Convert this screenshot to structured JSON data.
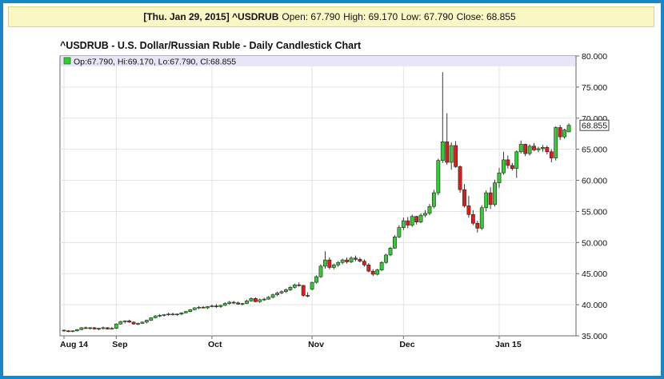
{
  "info_bar": {
    "date_symbol": "[Thu. Jan 29, 2015] ^USDRUB",
    "open": "Open: 67.790",
    "high": "High: 69.170",
    "low": "Low: 67.790",
    "close": "Close: 68.855"
  },
  "colors": {
    "up": "#33cc33",
    "down": "#dd1c1c",
    "legend_bg": "#e6e6f7",
    "frame": "#1a86c8"
  },
  "chart_data": {
    "type": "candlestick",
    "title": "^USDRUB - U.S. Dollar/Russian Ruble - Daily Candlestick Chart",
    "legend": "Op:67.790, Hi:69.170, Lo:67.790, Cl:68.855",
    "last_price_label": "68.855",
    "ylim": [
      35,
      80
    ],
    "y_ticks": [
      35,
      40,
      45,
      50,
      55,
      60,
      65,
      70,
      75,
      80
    ],
    "y_tick_labels": [
      "35.000",
      "40.000",
      "45.000",
      "50.000",
      "55.000",
      "60.000",
      "65.000",
      "70.000",
      "75.000",
      "80.000"
    ],
    "x_ticks": [
      {
        "label": "Aug 14",
        "index": 0
      },
      {
        "label": "Sep",
        "index": 12
      },
      {
        "label": "Oct",
        "index": 34
      },
      {
        "label": "Nov",
        "index": 57
      },
      {
        "label": "Dec",
        "index": 78
      },
      {
        "label": "Jan 15",
        "index": 100
      }
    ],
    "candles": [
      [
        35.9,
        36.0,
        35.7,
        35.8
      ],
      [
        35.8,
        35.9,
        35.6,
        35.7
      ],
      [
        35.7,
        35.9,
        35.6,
        35.8
      ],
      [
        35.8,
        36.1,
        35.7,
        36.0
      ],
      [
        36.0,
        36.4,
        35.9,
        36.3
      ],
      [
        36.3,
        36.5,
        36.1,
        36.2
      ],
      [
        36.2,
        36.4,
        36.0,
        36.3
      ],
      [
        36.3,
        36.4,
        36.0,
        36.1
      ],
      [
        36.1,
        36.3,
        35.9,
        36.2
      ],
      [
        36.2,
        36.5,
        36.0,
        36.3
      ],
      [
        36.3,
        36.4,
        36.0,
        36.1
      ],
      [
        36.1,
        36.4,
        36.0,
        36.2
      ],
      [
        36.2,
        37.0,
        36.1,
        36.9
      ],
      [
        36.9,
        37.4,
        36.8,
        37.3
      ],
      [
        37.3,
        37.5,
        37.0,
        37.4
      ],
      [
        37.4,
        37.6,
        37.1,
        37.2
      ],
      [
        37.2,
        37.3,
        36.8,
        36.9
      ],
      [
        36.9,
        37.1,
        36.7,
        37.0
      ],
      [
        37.0,
        37.3,
        36.9,
        37.2
      ],
      [
        37.2,
        37.6,
        37.0,
        37.5
      ],
      [
        37.5,
        38.0,
        37.4,
        37.9
      ],
      [
        37.9,
        38.3,
        37.8,
        38.2
      ],
      [
        38.2,
        38.5,
        38.0,
        38.3
      ],
      [
        38.3,
        38.5,
        38.1,
        38.4
      ],
      [
        38.4,
        38.7,
        38.2,
        38.5
      ],
      [
        38.5,
        38.7,
        38.3,
        38.4
      ],
      [
        38.4,
        38.6,
        38.2,
        38.5
      ],
      [
        38.5,
        38.8,
        38.3,
        38.7
      ],
      [
        38.7,
        39.0,
        38.6,
        38.9
      ],
      [
        38.9,
        39.3,
        38.8,
        39.2
      ],
      [
        39.2,
        39.6,
        39.1,
        39.5
      ],
      [
        39.5,
        39.8,
        39.3,
        39.6
      ],
      [
        39.6,
        39.8,
        39.4,
        39.5
      ],
      [
        39.5,
        39.8,
        39.3,
        39.7
      ],
      [
        39.7,
        40.0,
        39.6,
        39.8
      ],
      [
        39.8,
        40.1,
        39.5,
        39.7
      ],
      [
        39.7,
        40.0,
        39.5,
        39.9
      ],
      [
        39.9,
        40.4,
        39.8,
        40.2
      ],
      [
        40.2,
        40.6,
        40.0,
        40.4
      ],
      [
        40.4,
        40.6,
        40.1,
        40.3
      ],
      [
        40.3,
        40.5,
        40.0,
        40.1
      ],
      [
        40.1,
        40.3,
        39.9,
        40.2
      ],
      [
        40.2,
        40.8,
        40.1,
        40.6
      ],
      [
        40.6,
        41.2,
        40.5,
        41.0
      ],
      [
        41.0,
        41.2,
        40.4,
        40.5
      ],
      [
        40.5,
        41.0,
        40.3,
        40.8
      ],
      [
        40.8,
        41.1,
        40.6,
        40.9
      ],
      [
        40.9,
        41.4,
        40.8,
        41.2
      ],
      [
        41.2,
        41.8,
        41.0,
        41.6
      ],
      [
        41.6,
        42.1,
        41.4,
        41.9
      ],
      [
        41.9,
        42.3,
        41.7,
        42.1
      ],
      [
        42.1,
        42.6,
        41.9,
        42.4
      ],
      [
        42.4,
        43.0,
        42.2,
        42.8
      ],
      [
        42.8,
        43.4,
        42.6,
        43.2
      ],
      [
        43.2,
        43.6,
        42.9,
        43.1
      ],
      [
        43.1,
        43.2,
        41.3,
        41.5
      ],
      [
        41.5,
        42.0,
        41.2,
        41.4
      ],
      [
        42.5,
        43.7,
        42.3,
        43.6
      ],
      [
        43.6,
        44.7,
        43.4,
        44.5
      ],
      [
        44.5,
        46.5,
        44.3,
        46.2
      ],
      [
        46.2,
        48.6,
        45.8,
        47.2
      ],
      [
        47.2,
        47.6,
        45.7,
        46.0
      ],
      [
        46.0,
        46.6,
        45.7,
        46.4
      ],
      [
        46.4,
        47.0,
        46.1,
        46.8
      ],
      [
        46.8,
        47.4,
        46.5,
        47.2
      ],
      [
        47.2,
        47.6,
        46.6,
        46.9
      ],
      [
        46.9,
        47.8,
        46.7,
        47.5
      ],
      [
        47.5,
        47.9,
        47.0,
        47.3
      ],
      [
        47.3,
        47.6,
        46.8,
        47.0
      ],
      [
        47.0,
        47.3,
        46.1,
        46.4
      ],
      [
        46.4,
        46.7,
        45.2,
        45.4
      ],
      [
        45.4,
        45.7,
        44.6,
        44.9
      ],
      [
        44.9,
        45.8,
        44.7,
        45.6
      ],
      [
        45.6,
        47.0,
        45.4,
        46.8
      ],
      [
        46.8,
        48.2,
        46.6,
        48.0
      ],
      [
        48.0,
        49.3,
        47.8,
        49.1
      ],
      [
        49.1,
        51.2,
        49.0,
        50.9
      ],
      [
        50.9,
        52.8,
        50.7,
        52.4
      ],
      [
        52.4,
        54.0,
        52.0,
        53.5
      ],
      [
        53.5,
        54.1,
        52.3,
        52.8
      ],
      [
        52.8,
        54.5,
        52.5,
        54.2
      ],
      [
        54.2,
        54.3,
        52.9,
        53.3
      ],
      [
        53.3,
        54.7,
        53.1,
        54.4
      ],
      [
        54.4,
        55.2,
        54.1,
        54.7
      ],
      [
        54.7,
        56.2,
        54.4,
        55.8
      ],
      [
        55.8,
        58.5,
        55.5,
        58.0
      ],
      [
        58.0,
        63.5,
        57.6,
        63.2
      ],
      [
        63.2,
        77.4,
        62.8,
        66.2
      ],
      [
        66.2,
        70.8,
        62.5,
        62.9
      ],
      [
        62.9,
        66.1,
        61.7,
        65.6
      ],
      [
        65.6,
        66.3,
        62.0,
        62.2
      ],
      [
        62.2,
        62.4,
        58.0,
        58.5
      ],
      [
        58.5,
        59.4,
        55.6,
        55.9
      ],
      [
        55.9,
        57.5,
        54.0,
        54.5
      ],
      [
        54.5,
        55.2,
        52.8,
        53.1
      ],
      [
        53.1,
        53.5,
        51.6,
        52.3
      ],
      [
        52.3,
        56.0,
        52.0,
        55.6
      ],
      [
        55.6,
        58.4,
        55.0,
        58.0
      ],
      [
        58.0,
        58.9,
        55.4,
        56.1
      ],
      [
        56.1,
        60.1,
        55.8,
        59.6
      ],
      [
        59.6,
        62.0,
        58.8,
        61.2
      ],
      [
        61.2,
        64.6,
        60.9,
        63.3
      ],
      [
        63.3,
        64.0,
        61.9,
        62.4
      ],
      [
        62.4,
        62.8,
        61.6,
        61.9
      ],
      [
        61.9,
        64.8,
        60.4,
        64.6
      ],
      [
        64.6,
        66.4,
        64.3,
        65.8
      ],
      [
        65.8,
        65.9,
        63.9,
        64.3
      ],
      [
        64.3,
        65.8,
        64.0,
        65.5
      ],
      [
        65.5,
        66.0,
        64.7,
        64.9
      ],
      [
        64.9,
        65.4,
        64.5,
        65.1
      ],
      [
        65.1,
        65.7,
        64.6,
        65.3
      ],
      [
        65.3,
        65.6,
        64.2,
        64.6
      ],
      [
        64.6,
        65.0,
        62.9,
        63.6
      ],
      [
        63.6,
        68.7,
        63.2,
        68.5
      ],
      [
        68.5,
        68.9,
        66.5,
        67.0
      ],
      [
        67.0,
        68.3,
        66.7,
        68.1
      ],
      [
        67.79,
        69.17,
        67.79,
        68.855
      ]
    ]
  }
}
